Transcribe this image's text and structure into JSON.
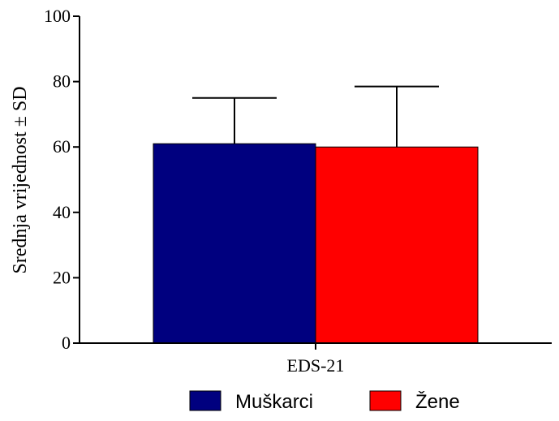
{
  "chart_data": {
    "type": "bar",
    "categories": [
      "EDS-21"
    ],
    "series": [
      {
        "name": "Muškarci",
        "values": [
          61
        ],
        "sd": [
          14
        ],
        "color": "#00007f"
      },
      {
        "name": "Žene",
        "values": [
          60
        ],
        "sd": [
          18.5
        ],
        "color": "#ff0000"
      }
    ],
    "title": "",
    "xlabel": "",
    "ylabel": "Srednja vrijednost ± SD",
    "ylim": [
      0,
      100
    ],
    "yticks": [
      0,
      20,
      40,
      60,
      80,
      100
    ],
    "grid": false,
    "legend": "bottom",
    "error_bars": "SD, upper only"
  }
}
